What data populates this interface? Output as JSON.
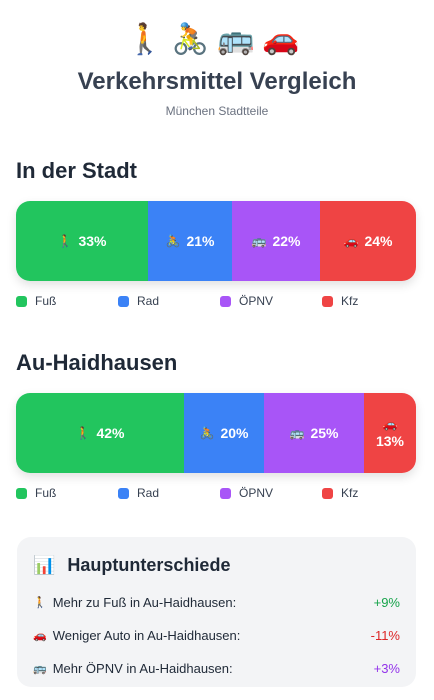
{
  "header": {
    "emojis": "🚶🚴🚌🚗",
    "title": "Verkehrsmittel Vergleich",
    "subtitle": "München Stadtteile"
  },
  "legend_labels": [
    "Fuß",
    "Rad",
    "ÖPNV",
    "Kfz"
  ],
  "colors": {
    "fuss": "#22c55e",
    "rad": "#3b82f6",
    "oepnv": "#a855f7",
    "kfz": "#ef4444"
  },
  "icons": {
    "fuss": "🚶",
    "rad": "🚴",
    "oepnv": "🚌",
    "kfz": "🚗"
  },
  "stadt": {
    "title": "In der Stadt",
    "segments": [
      {
        "mode": "fuss",
        "value": 33,
        "label": "33%"
      },
      {
        "mode": "rad",
        "value": 21,
        "label": "21%"
      },
      {
        "mode": "oepnv",
        "value": 22,
        "label": "22%"
      },
      {
        "mode": "kfz",
        "value": 24,
        "label": "24%"
      }
    ]
  },
  "au": {
    "title": "Au-Haidhausen",
    "segments": [
      {
        "mode": "fuss",
        "value": 42,
        "label": "42%"
      },
      {
        "mode": "rad",
        "value": 20,
        "label": "20%"
      },
      {
        "mode": "oepnv",
        "value": 25,
        "label": "25%"
      },
      {
        "mode": "kfz",
        "value": 13,
        "label": "13%"
      }
    ]
  },
  "card": {
    "icon": "📊",
    "title": "Hauptunterschiede",
    "rows": [
      {
        "icon": "🚶",
        "label": "Mehr zu Fuß in Au-Haidhausen:",
        "value": "+9%",
        "color": "#16a34a"
      },
      {
        "icon": "🚗",
        "label": "Weniger Auto in Au-Haidhausen:",
        "value": "-11%",
        "color": "#dc2626"
      },
      {
        "icon": "🚌",
        "label": "Mehr ÖPNV in Au-Haidhausen:",
        "value": "+3%",
        "color": "#9333ea"
      }
    ]
  }
}
